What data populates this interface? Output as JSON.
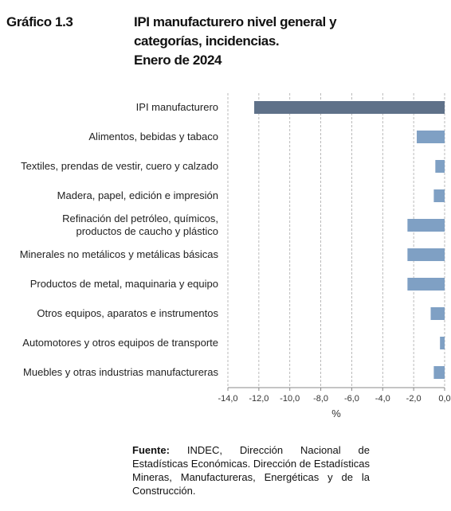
{
  "chart_data": {
    "type": "hbar",
    "label": "Gráfico 1.3",
    "title": "IPI manufacturero nivel general y categorías, incidencias.",
    "subtitle": "Enero de 2024",
    "categories": [
      "IPI manufacturero",
      "Alimentos, bebidas y tabaco",
      "Textiles, prendas de vestir, cuero y calzado",
      "Madera, papel, edición e impresión",
      "Refinación del petróleo, químicos,\nproductos de caucho y plástico",
      "Minerales no metálicos y metálicas básicas",
      "Productos de metal, maquinaria y equipo",
      "Otros equipos, aparatos e instrumentos",
      "Automotores y otros equipos de transporte",
      "Muebles y otras industrias manufactureras"
    ],
    "values": [
      -12.3,
      -1.8,
      -0.6,
      -0.7,
      -2.4,
      -2.4,
      -2.4,
      -0.9,
      -0.3,
      -0.7
    ],
    "colors": [
      "#5f7189",
      "#7fa0c4",
      "#7fa0c4",
      "#7fa0c4",
      "#7fa0c4",
      "#7fa0c4",
      "#7fa0c4",
      "#7fa0c4",
      "#7fa0c4",
      "#7fa0c4"
    ],
    "xlim": [
      -14,
      0
    ],
    "xticks": [
      {
        "value": -14,
        "label": "-14,0"
      },
      {
        "value": -12,
        "label": "-12,0"
      },
      {
        "value": -10,
        "label": "-10,0"
      },
      {
        "value": -8,
        "label": "-8,0"
      },
      {
        "value": -6,
        "label": "-6,0"
      },
      {
        "value": -4,
        "label": "-4,0"
      },
      {
        "value": -2,
        "label": "-2,0"
      },
      {
        "value": 0,
        "label": "0,0"
      }
    ],
    "xlabel": "%",
    "grid": true,
    "source_label": "Fuente:",
    "source": "INDEC, Dirección Nacional de Estadísticas Económicas. Dirección de Estadísticas Mineras, Manufactureras, Energéticas y de la Construcción."
  }
}
